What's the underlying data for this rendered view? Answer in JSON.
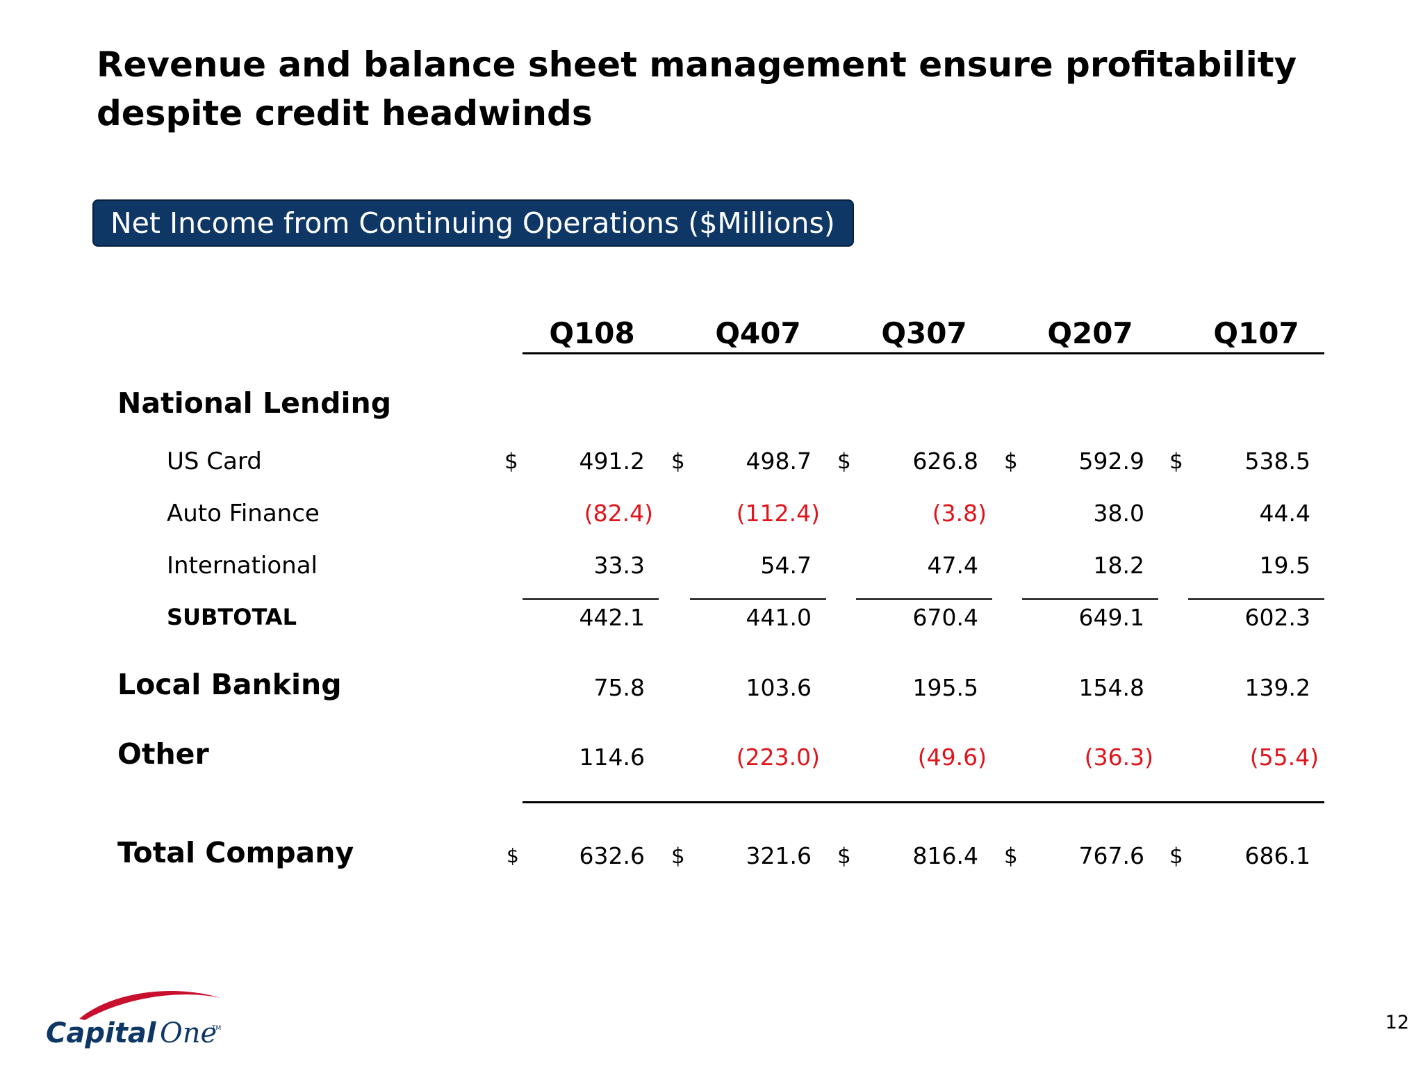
{
  "slide": {
    "title_line1": "Revenue and balance sheet management ensure profitability",
    "title_line2": "despite credit headwinds",
    "section_label": "Net Income from Continuing Operations ($Millions)",
    "page_number": "12"
  },
  "table": {
    "columns": [
      "Q108",
      "Q407",
      "Q307",
      "Q207",
      "Q107"
    ],
    "currency_symbol": "$",
    "groups": {
      "national_lending": "National Lending",
      "local_banking": "Local Banking",
      "other": "Other",
      "total_company": "Total Company"
    },
    "rows": {
      "us_card": {
        "label": "US Card",
        "values": [
          "491.2",
          "498.7",
          "626.8",
          "592.9",
          "538.5"
        ]
      },
      "auto_finance": {
        "label": "Auto Finance",
        "values": [
          "(82.4)",
          "(112.4)",
          "(3.8)",
          "38.0",
          "44.4"
        ]
      },
      "international": {
        "label": "International",
        "values": [
          "33.3",
          "54.7",
          "47.4",
          "18.2",
          "19.5"
        ]
      },
      "subtotal": {
        "label": "SUBTOTAL",
        "values": [
          "442.1",
          "441.0",
          "670.4",
          "649.1",
          "602.3"
        ]
      },
      "local_banking": {
        "values": [
          "75.8",
          "103.6",
          "195.5",
          "154.8",
          "139.2"
        ]
      },
      "other": {
        "values": [
          "114.6",
          "(223.0)",
          "(49.6)",
          "(36.3)",
          "(55.4)"
        ]
      },
      "total_company": {
        "values": [
          "632.6",
          "321.6",
          "816.4",
          "767.6",
          "686.1"
        ]
      }
    },
    "colors": {
      "negative": "#e0141b",
      "header_box": "#0e3766"
    }
  },
  "logo": {
    "text_part1": "Capital",
    "text_part2": "One",
    "trademark": "TM",
    "swoosh_color": "#c8102e",
    "text_color": "#0e3766"
  }
}
